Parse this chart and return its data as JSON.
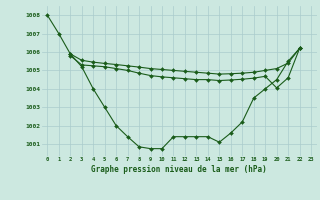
{
  "title": "Graphe pression niveau de la mer (hPa)",
  "background_color": "#cce8e0",
  "grid_color": "#aacccc",
  "line_color": "#1a5c1a",
  "x_labels": [
    "0",
    "1",
    "2",
    "3",
    "4",
    "5",
    "6",
    "7",
    "8",
    "9",
    "10",
    "11",
    "12",
    "13",
    "14",
    "15",
    "16",
    "17",
    "18",
    "19",
    "20",
    "21",
    "22",
    "23"
  ],
  "ylim": [
    1000.35,
    1008.5
  ],
  "yticks": [
    1001,
    1002,
    1003,
    1004,
    1005,
    1006,
    1007,
    1008
  ],
  "series": [
    [
      1008.0,
      1007.0,
      1005.9,
      1005.2,
      1004.0,
      1003.0,
      1002.0,
      1001.4,
      1000.85,
      1000.75,
      1000.75,
      1001.4,
      1001.4,
      1001.4,
      1001.4,
      1001.1,
      1001.6,
      1002.2,
      1003.5,
      1004.0,
      1004.5,
      1005.5,
      1006.2,
      null
    ],
    [
      null,
      null,
      1005.9,
      1005.55,
      1005.45,
      1005.38,
      1005.32,
      1005.25,
      1005.18,
      1005.1,
      1005.05,
      1005.0,
      1004.95,
      1004.9,
      1004.85,
      1004.8,
      1004.82,
      1004.85,
      1004.9,
      1005.0,
      1005.1,
      1005.4,
      1006.2,
      null
    ],
    [
      null,
      null,
      1005.8,
      1005.3,
      1005.25,
      1005.2,
      1005.1,
      1005.0,
      1004.85,
      1004.72,
      1004.65,
      1004.6,
      1004.55,
      1004.5,
      1004.5,
      1004.45,
      1004.48,
      1004.52,
      1004.58,
      1004.68,
      1004.05,
      1004.6,
      1006.2,
      null
    ]
  ]
}
